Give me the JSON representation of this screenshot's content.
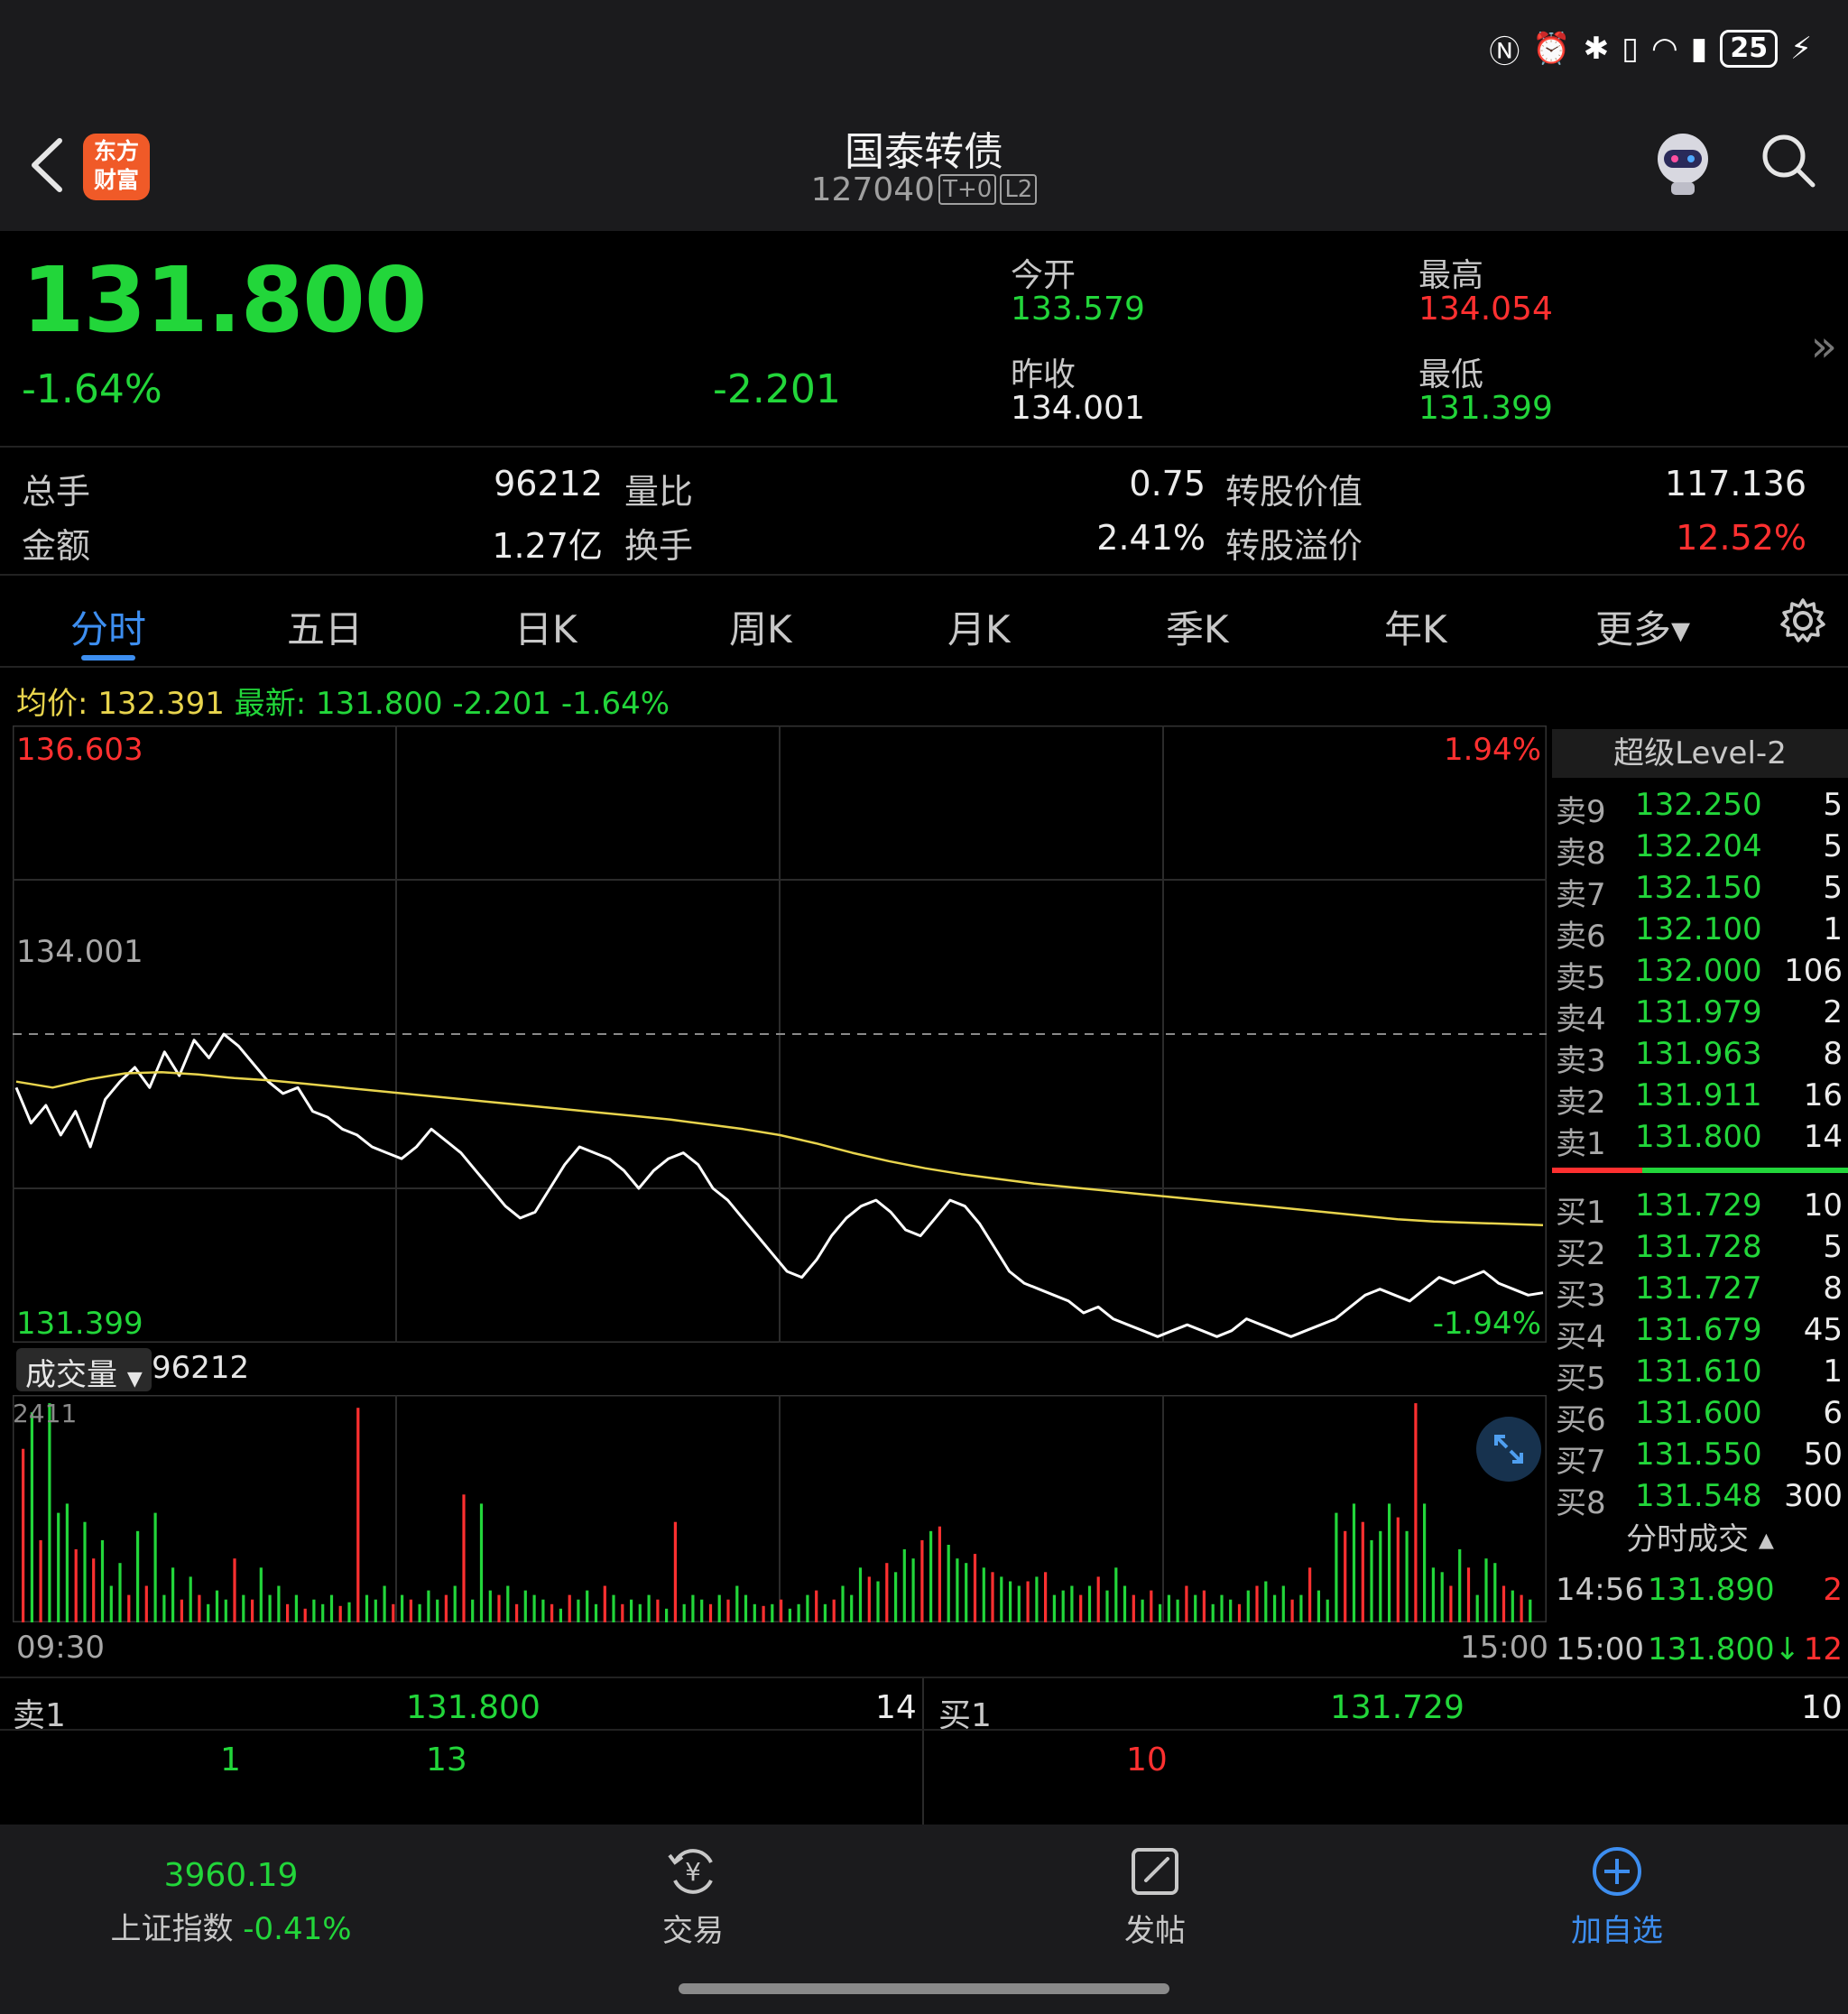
{
  "status_bar": {
    "battery": "25"
  },
  "header": {
    "app_logo": "东方\n财富",
    "title": "国泰转债",
    "code": "127040",
    "tag_t0": "T+0",
    "tag_l2": "L2"
  },
  "quote": {
    "price": "131.800",
    "change_pct": "-1.64%",
    "change": "-2.201",
    "open_label": "今开",
    "open": "133.579",
    "high_label": "最高",
    "high": "134.054",
    "prev_close_label": "昨收",
    "prev_close": "134.001",
    "low_label": "最低",
    "low": "131.399"
  },
  "stats": {
    "volume_label": "总手",
    "volume": "96212",
    "amount_label": "金额",
    "amount": "1.27亿",
    "vol_ratio_label": "量比",
    "vol_ratio": "0.75",
    "turnover_label": "换手",
    "turnover": "2.41%",
    "conv_value_label": "转股价值",
    "conv_value": "117.136",
    "conv_premium_label": "转股溢价",
    "conv_premium": "12.52%"
  },
  "tabs": [
    "分时",
    "五日",
    "日K",
    "周K",
    "月K",
    "季K",
    "年K",
    "更多▾"
  ],
  "avg_row": {
    "avg_label": "均价:",
    "avg": "132.391",
    "latest_label": "最新:",
    "latest": "131.800",
    "latest_chg": "-2.201",
    "latest_pct": "-1.64%"
  },
  "chart_labels": {
    "top_price": "136.603",
    "top_pct": "1.94%",
    "mid_price": "134.001",
    "bottom_price": "131.399",
    "bottom_pct": "-1.94%",
    "volume_selector": "成交量",
    "volume_total": "96212",
    "volume_max": "2411",
    "time_start": "09:30",
    "time_end": "15:00"
  },
  "order_book": {
    "title": "超级Level-2",
    "asks": [
      {
        "label": "卖9",
        "price": "132.250",
        "qty": "5"
      },
      {
        "label": "卖8",
        "price": "132.204",
        "qty": "5"
      },
      {
        "label": "卖7",
        "price": "132.150",
        "qty": "5"
      },
      {
        "label": "卖6",
        "price": "132.100",
        "qty": "1"
      },
      {
        "label": "卖5",
        "price": "132.000",
        "qty": "106"
      },
      {
        "label": "卖4",
        "price": "131.979",
        "qty": "2"
      },
      {
        "label": "卖3",
        "price": "131.963",
        "qty": "8"
      },
      {
        "label": "卖2",
        "price": "131.911",
        "qty": "16"
      },
      {
        "label": "卖1",
        "price": "131.800",
        "qty": "14"
      }
    ],
    "bids": [
      {
        "label": "买1",
        "price": "131.729",
        "qty": "10"
      },
      {
        "label": "买2",
        "price": "131.728",
        "qty": "5"
      },
      {
        "label": "买3",
        "price": "131.727",
        "qty": "8"
      },
      {
        "label": "买4",
        "price": "131.679",
        "qty": "45"
      },
      {
        "label": "买5",
        "price": "131.610",
        "qty": "1"
      },
      {
        "label": "买6",
        "price": "131.600",
        "qty": "6"
      },
      {
        "label": "买7",
        "price": "131.550",
        "qty": "50"
      },
      {
        "label": "买8",
        "price": "131.548",
        "qty": "300"
      }
    ],
    "ticks_title": "分时成交 ▴",
    "ticks": [
      {
        "time": "14:56",
        "price": "131.890",
        "qty": "2"
      },
      {
        "time": "15:00",
        "price": "131.800↓",
        "qty": "12"
      }
    ]
  },
  "queue": {
    "ask_label": "卖1",
    "ask_price": "131.800",
    "ask_qty": "14",
    "bid_label": "买1",
    "bid_price": "131.729",
    "bid_qty": "10",
    "ask_orders": [
      "1",
      "13"
    ],
    "bid_orders": [
      "10"
    ]
  },
  "bottom_bar": {
    "index_value": "3960.19",
    "index_name": "上证指数",
    "index_change": "-0.41%",
    "trade_label": "交易",
    "post_label": "发帖",
    "add_watch_label": "加自选"
  },
  "colors": {
    "up": "#ff3030",
    "down": "#22d63a",
    "avg_line": "#e8d44d",
    "accent": "#3d8ef0"
  },
  "chart_data": {
    "type": "line",
    "title": "",
    "xlabel": "",
    "ylabel": "",
    "x_range": [
      "09:30",
      "15:00"
    ],
    "ylim": [
      131.399,
      136.603
    ],
    "reference": 134.001,
    "series": [
      {
        "name": "最新",
        "values": [
          133.55,
          133.25,
          133.4,
          133.15,
          133.35,
          133.05,
          133.45,
          133.6,
          133.72,
          133.55,
          133.85,
          133.65,
          133.95,
          133.8,
          134.0,
          133.9,
          133.75,
          133.6,
          133.5,
          133.55,
          133.35,
          133.3,
          133.2,
          133.15,
          133.05,
          133.0,
          132.95,
          133.05,
          133.2,
          133.1,
          133.0,
          132.85,
          132.7,
          132.55,
          132.45,
          132.5,
          132.7,
          132.9,
          133.05,
          133.0,
          132.95,
          132.85,
          132.7,
          132.85,
          132.95,
          133.0,
          132.9,
          132.7,
          132.6,
          132.45,
          132.3,
          132.15,
          132.0,
          131.95,
          132.1,
          132.3,
          132.45,
          132.55,
          132.6,
          132.5,
          132.35,
          132.3,
          132.45,
          132.6,
          132.55,
          132.4,
          132.2,
          132.0,
          131.9,
          131.85,
          131.8,
          131.75,
          131.65,
          131.7,
          131.6,
          131.55,
          131.5,
          131.45,
          131.5,
          131.55,
          131.5,
          131.45,
          131.5,
          131.6,
          131.55,
          131.5,
          131.45,
          131.5,
          131.55,
          131.6,
          131.7,
          131.8,
          131.85,
          131.8,
          131.75,
          131.85,
          131.95,
          131.9,
          131.95,
          132.0,
          131.9,
          131.85,
          131.8,
          131.82
        ],
        "color": "#ffffff"
      },
      {
        "name": "均价",
        "values": [
          133.6,
          133.55,
          133.62,
          133.67,
          133.68,
          133.66,
          133.63,
          133.61,
          133.58,
          133.55,
          133.52,
          133.49,
          133.46,
          133.43,
          133.4,
          133.37,
          133.34,
          133.31,
          133.28,
          133.24,
          133.2,
          133.15,
          133.08,
          133.0,
          132.93,
          132.87,
          132.82,
          132.78,
          132.74,
          132.71,
          132.68,
          132.65,
          132.62,
          132.59,
          132.56,
          132.53,
          132.5,
          132.47,
          132.44,
          132.42,
          132.41,
          132.4,
          132.39
        ],
        "color": "#e8d44d"
      }
    ],
    "volume": {
      "max": 2411,
      "values": [
        1900,
        2300,
        900,
        2400,
        1200,
        1300,
        800,
        1100,
        700,
        900,
        400,
        650,
        300,
        1000,
        400,
        1200,
        300,
        600,
        250,
        500,
        300,
        200,
        350,
        250,
        700,
        300,
        250,
        600,
        300,
        400,
        200,
        300,
        150,
        250,
        200,
        300,
        180,
        220,
        2350,
        300,
        250,
        400,
        200,
        300,
        250,
        200,
        350,
        250,
        300,
        400,
        1400,
        250,
        1300,
        350,
        300,
        400,
        200,
        350,
        300,
        250,
        200,
        150,
        300,
        250,
        350,
        200,
        400,
        300,
        200,
        250,
        200,
        300,
        250,
        150,
        1100,
        200,
        300,
        250,
        200,
        300,
        250,
        400,
        300,
        200,
        180,
        200,
        250,
        150,
        200,
        300,
        350,
        200,
        250,
        400,
        300,
        600,
        500,
        450,
        650,
        550,
        800,
        700,
        900,
        1000,
        1050,
        850,
        700,
        650,
        750,
        600,
        550,
        500,
        450,
        400,
        450,
        500,
        550,
        300,
        350,
        400,
        300,
        400,
        500,
        350,
        600,
        400,
        300,
        250,
        350,
        200,
        300,
        250,
        400,
        300,
        350,
        200,
        300,
        250,
        200,
        350,
        400,
        450,
        300,
        400,
        250,
        300,
        600,
        350,
        250,
        1200,
        1000,
        1300,
        1100,
        900,
        1000,
        1300,
        1150,
        1000,
        2400,
        1300,
        600,
        550,
        400,
        800,
        600,
        300,
        700,
        650,
        400,
        350,
        300,
        250
      ],
      "colors_up_down": "alternating red up / green down"
    }
  }
}
